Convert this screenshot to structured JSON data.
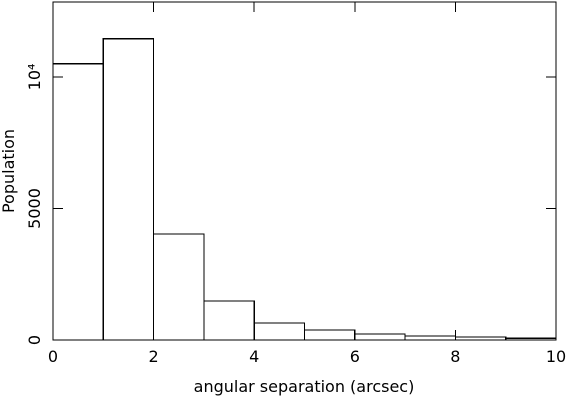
{
  "chart_data": {
    "type": "histogram",
    "xlabel": "angular separation (arcsec)",
    "ylabel": "Population",
    "bins": [
      0,
      1,
      2,
      3,
      4,
      5,
      6,
      7,
      8,
      9,
      10
    ],
    "values": [
      10500,
      11450,
      4030,
      1480,
      650,
      380,
      230,
      150,
      110,
      70
    ],
    "color": "#000000",
    "xlim": [
      0,
      10
    ],
    "xticks": [
      0,
      2,
      4,
      6,
      8,
      10
    ],
    "ylim": [
      0,
      12850
    ],
    "yticks": [
      0,
      5000,
      {
        "value": 10000,
        "label": "10⁴"
      }
    ]
  }
}
